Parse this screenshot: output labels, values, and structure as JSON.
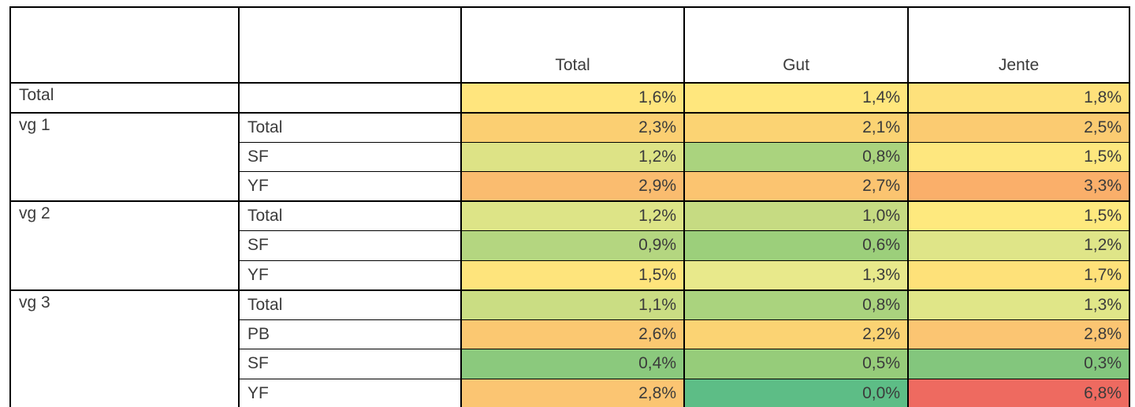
{
  "table": {
    "header": {
      "columns": [
        "Total",
        "Gut",
        "Jente"
      ]
    },
    "groups": [
      {
        "label": "Total",
        "rows": [
          {
            "sub": "",
            "cells": [
              {
                "text": "1,6%",
                "bg": "#FFE57D"
              },
              {
                "text": "1,4%",
                "bg": "#FFE77D"
              },
              {
                "text": "1,8%",
                "bg": "#FEE17B"
              }
            ]
          }
        ]
      },
      {
        "label": "vg 1",
        "rows": [
          {
            "sub": "Total",
            "cells": [
              {
                "text": "2,3%",
                "bg": "#FBCF72"
              },
              {
                "text": "2,1%",
                "bg": "#FBD373"
              },
              {
                "text": "2,5%",
                "bg": "#FBCB71"
              }
            ]
          },
          {
            "sub": "SF",
            "cells": [
              {
                "text": "1,2%",
                "bg": "#DDE386"
              },
              {
                "text": "0,8%",
                "bg": "#AAD37E"
              },
              {
                "text": "1,5%",
                "bg": "#FEE77E"
              }
            ]
          },
          {
            "sub": "YF",
            "cells": [
              {
                "text": "2,9%",
                "bg": "#FABC6F"
              },
              {
                "text": "2,7%",
                "bg": "#FBC470"
              },
              {
                "text": "3,3%",
                "bg": "#FAAF6A"
              }
            ]
          }
        ]
      },
      {
        "label": "vg 2",
        "rows": [
          {
            "sub": "Total",
            "cells": [
              {
                "text": "1,2%",
                "bg": "#DDE487"
              },
              {
                "text": "1,0%",
                "bg": "#C6DB82"
              },
              {
                "text": "1,5%",
                "bg": "#FEE97E"
              }
            ]
          },
          {
            "sub": "SF",
            "cells": [
              {
                "text": "0,9%",
                "bg": "#B4D680"
              },
              {
                "text": "0,6%",
                "bg": "#9CCF7B"
              },
              {
                "text": "1,2%",
                "bg": "#DFE588"
              }
            ]
          },
          {
            "sub": "YF",
            "cells": [
              {
                "text": "1,5%",
                "bg": "#FEE47C"
              },
              {
                "text": "1,3%",
                "bg": "#E8E98B"
              },
              {
                "text": "1,7%",
                "bg": "#FEE179"
              }
            ]
          }
        ]
      },
      {
        "label": "vg 3",
        "rows": [
          {
            "sub": "Total",
            "cells": [
              {
                "text": "1,1%",
                "bg": "#CADD83"
              },
              {
                "text": "0,8%",
                "bg": "#AAD37E"
              },
              {
                "text": "1,3%",
                "bg": "#E0E688"
              }
            ]
          },
          {
            "sub": "PB",
            "cells": [
              {
                "text": "2,6%",
                "bg": "#FBC871"
              },
              {
                "text": "2,2%",
                "bg": "#FBD373"
              },
              {
                "text": "2,8%",
                "bg": "#FBC572"
              }
            ]
          },
          {
            "sub": "SF",
            "cells": [
              {
                "text": "0,4%",
                "bg": "#8BC97D"
              },
              {
                "text": "0,5%",
                "bg": "#96CC7A"
              },
              {
                "text": "0,3%",
                "bg": "#83C67D"
              }
            ]
          },
          {
            "sub": "YF",
            "cells": [
              {
                "text": "2,8%",
                "bg": "#FBC572"
              },
              {
                "text": "0,0%",
                "bg": "#5DBD86"
              },
              {
                "text": "6,8%",
                "bg": "#EE6A60"
              }
            ]
          }
        ]
      }
    ]
  },
  "chart_data": {
    "type": "heatmap",
    "columns": [
      "Total",
      "Gut",
      "Jente"
    ],
    "rows": [
      {
        "group": "Total",
        "sub": "",
        "values": [
          1.6,
          1.4,
          1.8
        ]
      },
      {
        "group": "vg 1",
        "sub": "Total",
        "values": [
          2.3,
          2.1,
          2.5
        ]
      },
      {
        "group": "vg 1",
        "sub": "SF",
        "values": [
          1.2,
          0.8,
          1.5
        ]
      },
      {
        "group": "vg 1",
        "sub": "YF",
        "values": [
          2.9,
          2.7,
          3.3
        ]
      },
      {
        "group": "vg 2",
        "sub": "Total",
        "values": [
          1.2,
          1.0,
          1.5
        ]
      },
      {
        "group": "vg 2",
        "sub": "SF",
        "values": [
          0.9,
          0.6,
          1.2
        ]
      },
      {
        "group": "vg 2",
        "sub": "YF",
        "values": [
          1.5,
          1.3,
          1.7
        ]
      },
      {
        "group": "vg 3",
        "sub": "Total",
        "values": [
          1.1,
          0.8,
          1.3
        ]
      },
      {
        "group": "vg 3",
        "sub": "PB",
        "values": [
          2.6,
          2.2,
          2.8
        ]
      },
      {
        "group": "vg 3",
        "sub": "SF",
        "values": [
          0.4,
          0.5,
          0.3
        ]
      },
      {
        "group": "vg 3",
        "sub": "YF",
        "values": [
          2.8,
          0.0,
          6.8
        ]
      }
    ],
    "value_format": "percent, comma decimal separator",
    "color_scale": {
      "low": "#5DBD86",
      "mid": "#FFE57D",
      "high": "#EE6A60"
    },
    "value_range": [
      0.0,
      6.8
    ],
    "grid": true,
    "legend": false
  }
}
